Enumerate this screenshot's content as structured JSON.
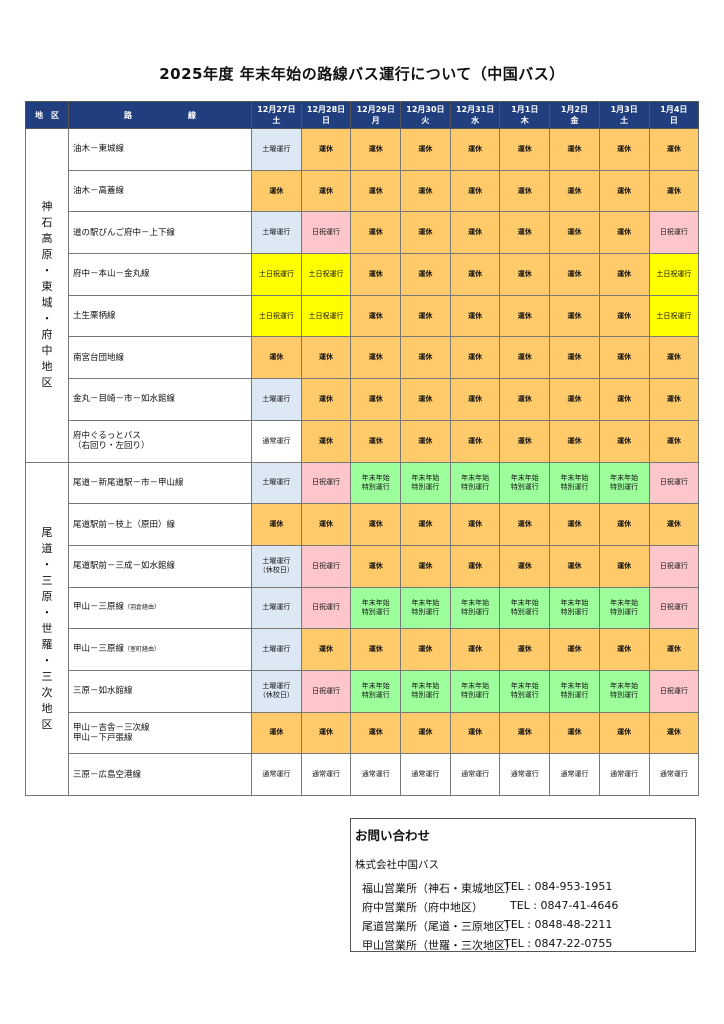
{
  "title": "2025年度 年末年始の路線バス運行について（中国バス）",
  "header": {
    "region": "地　区",
    "route": "路　　　　　　　線",
    "dates": [
      {
        "date": "12月27日",
        "dow": "土"
      },
      {
        "date": "12月28日",
        "dow": "日"
      },
      {
        "date": "12月29日",
        "dow": "月"
      },
      {
        "date": "12月30日",
        "dow": "火"
      },
      {
        "date": "12月31日",
        "dow": "水"
      },
      {
        "date": "1月1日",
        "dow": "木"
      },
      {
        "date": "1月2日",
        "dow": "金"
      },
      {
        "date": "1月3日",
        "dow": "土"
      },
      {
        "date": "1月4日",
        "dow": "日"
      }
    ]
  },
  "status_labels": {
    "K": "運休",
    "D": "土曜運行",
    "N": "日祝運行",
    "Y": "土日祝運行",
    "T": "通常運行",
    "S": "年末年始\n特別運行",
    "DK": "土曜運行\n（休校日）"
  },
  "status_colors": {
    "K": "#ffca6a",
    "D": "#dce8f4",
    "N": "#fdc6cb",
    "Y": "#ffff00",
    "T": "#ffffff",
    "S": "#9cff9c",
    "DK": "#dce8f4",
    "header": "#213f7e"
  },
  "regions": [
    {
      "name": "神石高原・東城・府中地区",
      "routes": [
        {
          "name": "油木－東城線",
          "status": [
            "D",
            "K",
            "K",
            "K",
            "K",
            "K",
            "K",
            "K",
            "K"
          ]
        },
        {
          "name": "油木－高蓋線",
          "status": [
            "K",
            "K",
            "K",
            "K",
            "K",
            "K",
            "K",
            "K",
            "K"
          ]
        },
        {
          "name": "道の駅びんご府中－上下線",
          "status": [
            "D",
            "N",
            "K",
            "K",
            "K",
            "K",
            "K",
            "K",
            "N"
          ]
        },
        {
          "name": "府中－本山－金丸線",
          "status": [
            "Y",
            "Y",
            "K",
            "K",
            "K",
            "K",
            "K",
            "K",
            "Y"
          ]
        },
        {
          "name": "土生栗柄線",
          "status": [
            "Y",
            "Y",
            "K",
            "K",
            "K",
            "K",
            "K",
            "K",
            "Y"
          ]
        },
        {
          "name": "南宮台団地線",
          "status": [
            "K",
            "K",
            "K",
            "K",
            "K",
            "K",
            "K",
            "K",
            "K"
          ]
        },
        {
          "name": "金丸－目崎－市－如水館線",
          "status": [
            "D",
            "K",
            "K",
            "K",
            "K",
            "K",
            "K",
            "K",
            "K"
          ]
        },
        {
          "name": "府中ぐるっとバス\n（右回り・左回り）",
          "status": [
            "T",
            "K",
            "K",
            "K",
            "K",
            "K",
            "K",
            "K",
            "K"
          ]
        }
      ]
    },
    {
      "name": "尾道・三原・世羅・三次地区",
      "routes": [
        {
          "name": "尾道－新尾道駅－市－甲山線",
          "status": [
            "D",
            "N",
            "S",
            "S",
            "S",
            "S",
            "S",
            "S",
            "N"
          ]
        },
        {
          "name": "尾道駅前－枝上（原田）線",
          "status": [
            "K",
            "K",
            "K",
            "K",
            "K",
            "K",
            "K",
            "K",
            "K"
          ]
        },
        {
          "name": "尾道駅前－三成－如水館線",
          "status": [
            "DK",
            "N",
            "K",
            "K",
            "K",
            "K",
            "K",
            "K",
            "N"
          ]
        },
        {
          "name": "甲山－三原線",
          "note": "（羽倉経由）",
          "status": [
            "D",
            "N",
            "S",
            "S",
            "S",
            "S",
            "S",
            "S",
            "N"
          ]
        },
        {
          "name": "甲山－三原線",
          "note": "（室町経由）",
          "status": [
            "D",
            "K",
            "K",
            "K",
            "K",
            "K",
            "K",
            "K",
            "K"
          ]
        },
        {
          "name": "三原－如水館線",
          "status": [
            "DK",
            "N",
            "S",
            "S",
            "S",
            "S",
            "S",
            "S",
            "N"
          ]
        },
        {
          "name": "甲山－吉舎－三次線\n甲山－下戸張線",
          "status": [
            "K",
            "K",
            "K",
            "K",
            "K",
            "K",
            "K",
            "K",
            "K"
          ]
        },
        {
          "name": "三原－広島空港線",
          "status": [
            "T",
            "T",
            "T",
            "T",
            "T",
            "T",
            "T",
            "T",
            "T"
          ]
        }
      ]
    }
  ],
  "contact": {
    "heading": "お問い合わせ",
    "company": "株式会社中国バス",
    "offices": [
      {
        "name": "福山営業所（神石・東城地区）",
        "tel": "TEL : 084-953-1951"
      },
      {
        "name": "府中営業所（府中地区）",
        "tel": "TEL : 0847-41-4646"
      },
      {
        "name": "尾道営業所（尾道・三原地区）",
        "tel": "TEL : 0848-48-2211"
      },
      {
        "name": "甲山営業所（世羅・三次地区）",
        "tel": "TEL : 0847-22-0755"
      }
    ]
  }
}
